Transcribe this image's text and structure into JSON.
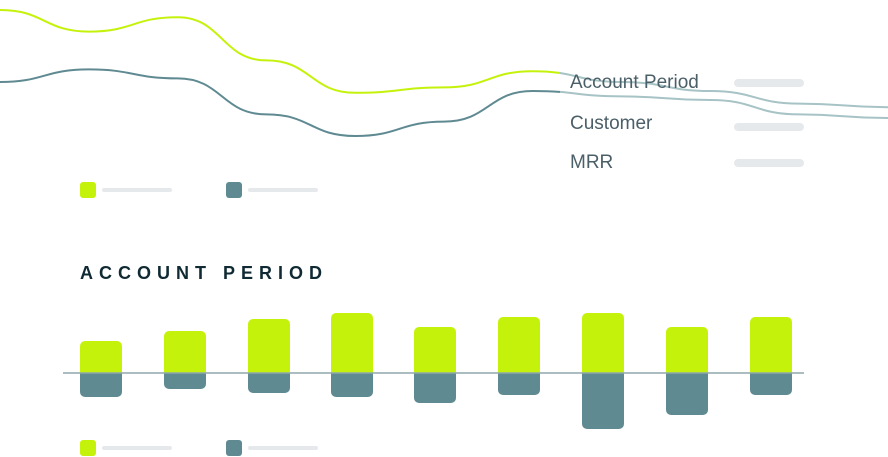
{
  "colors": {
    "lime": "#c5f20a",
    "teal": "#5f8a92",
    "teal_light": "#a7c3c5",
    "placeholder": "#e6e9ec",
    "title": "#102a33",
    "label": "#4b5f68",
    "baseline": "#8fa7ab"
  },
  "line_chart": {
    "tooltip": {
      "items": [
        {
          "label": "Account Period"
        },
        {
          "label": "Customer"
        },
        {
          "label": "MRR"
        }
      ]
    },
    "legend": [
      {
        "color": "#c5f20a"
      },
      {
        "color": "#5f8a92"
      }
    ]
  },
  "bar_section": {
    "title": "ACCOUNT PERIOD",
    "legend": [
      {
        "color": "#c5f20a"
      },
      {
        "color": "#5f8a92"
      }
    ]
  },
  "chart_data": [
    {
      "type": "line",
      "x": [
        0,
        1,
        2,
        3,
        4,
        5,
        6,
        7,
        8,
        9,
        10
      ],
      "ylim": [
        0,
        100
      ],
      "series": [
        {
          "color": "#c5f20a",
          "values": [
            100,
            88,
            96,
            72,
            54,
            57,
            66,
            60,
            55,
            48,
            46
          ]
        },
        {
          "color": "#5f8a92",
          "values": [
            60,
            67,
            62,
            42,
            30,
            38,
            55,
            52,
            50,
            42,
            40
          ]
        }
      ]
    },
    {
      "type": "bar",
      "categories": [
        "1",
        "2",
        "3",
        "4",
        "5",
        "6",
        "7",
        "8",
        "9"
      ],
      "ylim": [
        -60,
        60
      ],
      "series": [
        {
          "color": "#c5f20a",
          "values": [
            32,
            42,
            54,
            60,
            46,
            56,
            60,
            46,
            56
          ]
        },
        {
          "color": "#5f8a92",
          "values": [
            -24,
            -16,
            -20,
            -24,
            -30,
            -22,
            -56,
            -42,
            -22
          ]
        }
      ]
    }
  ]
}
